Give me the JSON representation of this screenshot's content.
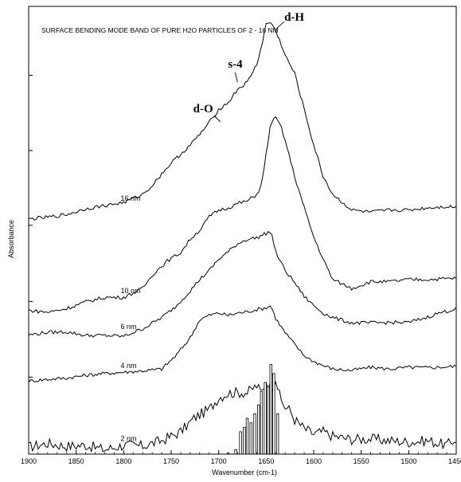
{
  "chart_data": {
    "type": "line",
    "title": "SURFACE BENDING MODE BAND OF PURE H2O PARTICLES OF 2 - 16 NM",
    "xlabel": "Wavenumber (cm-1)",
    "ylabel": "Absorbance",
    "xlim": [
      1900,
      1450
    ],
    "x_reversed": true,
    "ylim": [
      0,
      1
    ],
    "y_tick_labels_shown": false,
    "grid": false,
    "x_ticks": [
      1900,
      1850,
      1800,
      1750,
      1700,
      1650,
      1600,
      1550,
      1500,
      1450
    ],
    "x_tick_labels": [
      "1900",
      "1850",
      "1800",
      "1750",
      "1700",
      "1650",
      "1600",
      "1550",
      "1500",
      "1450"
    ],
    "y_ticks": [
      0.0,
      0.172,
      0.341,
      0.511,
      0.678,
      0.846
    ],
    "series": [
      {
        "name": "2 nm",
        "x": [
          1900,
          1880,
          1860,
          1840,
          1820,
          1800,
          1780,
          1760,
          1740,
          1725,
          1710,
          1700,
          1690,
          1680,
          1670,
          1660,
          1655,
          1650,
          1645,
          1640,
          1635,
          1630,
          1625,
          1620,
          1610,
          1600,
          1590,
          1580,
          1560,
          1540,
          1520,
          1500,
          1480,
          1460,
          1450
        ],
        "y": [
          0.016,
          0.024,
          0.018,
          0.02,
          0.01,
          0.02,
          0.018,
          0.03,
          0.05,
          0.082,
          0.1,
          0.126,
          0.136,
          0.138,
          0.137,
          0.153,
          0.136,
          0.164,
          0.147,
          0.17,
          0.122,
          0.105,
          0.098,
          0.077,
          0.057,
          0.045,
          0.05,
          0.04,
          0.033,
          0.034,
          0.03,
          0.027,
          0.03,
          0.02,
          0.034
        ]
      },
      {
        "name": "4 nm",
        "x": [
          1900,
          1880,
          1860,
          1840,
          1820,
          1800,
          1780,
          1760,
          1745,
          1730,
          1720,
          1710,
          1700,
          1690,
          1680,
          1670,
          1660,
          1650,
          1645,
          1640,
          1630,
          1620,
          1610,
          1600,
          1590,
          1580,
          1560,
          1540,
          1520,
          1500,
          1480,
          1460,
          1450
        ],
        "y": [
          0.163,
          0.167,
          0.17,
          0.176,
          0.18,
          0.183,
          0.186,
          0.19,
          0.22,
          0.26,
          0.3,
          0.31,
          0.315,
          0.31,
          0.315,
          0.318,
          0.323,
          0.327,
          0.332,
          0.303,
          0.271,
          0.245,
          0.22,
          0.207,
          0.198,
          0.19,
          0.187,
          0.194,
          0.19,
          0.194,
          0.193,
          0.195,
          0.196
        ]
      },
      {
        "name": "6 nm",
        "x": [
          1900,
          1880,
          1860,
          1840,
          1820,
          1800,
          1780,
          1760,
          1745,
          1730,
          1720,
          1710,
          1700,
          1690,
          1680,
          1670,
          1660,
          1650,
          1645,
          1640,
          1630,
          1620,
          1610,
          1600,
          1590,
          1580,
          1560,
          1540,
          1520,
          1500,
          1490,
          1480,
          1470,
          1460,
          1450
        ],
        "y": [
          0.266,
          0.272,
          0.273,
          0.265,
          0.265,
          0.263,
          0.28,
          0.305,
          0.33,
          0.365,
          0.39,
          0.41,
          0.435,
          0.452,
          0.47,
          0.48,
          0.483,
          0.493,
          0.498,
          0.451,
          0.41,
          0.383,
          0.352,
          0.332,
          0.315,
          0.305,
          0.293,
          0.293,
          0.294,
          0.294,
          0.3,
          0.306,
          0.314,
          0.319,
          0.325
        ]
      },
      {
        "name": "10 nm",
        "x": [
          1900,
          1880,
          1860,
          1840,
          1820,
          1800,
          1780,
          1770,
          1755,
          1740,
          1730,
          1720,
          1710,
          1700,
          1690,
          1680,
          1670,
          1660,
          1655,
          1650,
          1645,
          1640,
          1635,
          1630,
          1620,
          1610,
          1600,
          1590,
          1580,
          1560,
          1540,
          1520,
          1500,
          1480,
          1460,
          1450
        ],
        "y": [
          0.321,
          0.317,
          0.325,
          0.34,
          0.35,
          0.35,
          0.37,
          0.4,
          0.43,
          0.45,
          0.48,
          0.5,
          0.53,
          0.545,
          0.55,
          0.56,
          0.565,
          0.58,
          0.6,
          0.67,
          0.742,
          0.75,
          0.735,
          0.7,
          0.62,
          0.55,
          0.485,
          0.435,
          0.39,
          0.37,
          0.385,
          0.385,
          0.39,
          0.39,
          0.392,
          0.393
        ]
      },
      {
        "name": "16 nm",
        "x": [
          1900,
          1880,
          1860,
          1840,
          1820,
          1800,
          1780,
          1770,
          1760,
          1750,
          1740,
          1730,
          1720,
          1710,
          1700,
          1690,
          1680,
          1670,
          1660,
          1655,
          1650,
          1645,
          1640,
          1635,
          1630,
          1620,
          1610,
          1600,
          1590,
          1580,
          1560,
          1540,
          1520,
          1500,
          1480,
          1460,
          1450
        ],
        "y": [
          0.525,
          0.529,
          0.535,
          0.548,
          0.555,
          0.562,
          0.58,
          0.6,
          0.626,
          0.65,
          0.67,
          0.69,
          0.714,
          0.74,
          0.77,
          0.785,
          0.815,
          0.83,
          0.87,
          0.91,
          0.96,
          0.965,
          0.945,
          0.92,
          0.89,
          0.85,
          0.77,
          0.69,
          0.62,
          0.58,
          0.545,
          0.54,
          0.545,
          0.545,
          0.55,
          0.553,
          0.552
        ]
      }
    ],
    "stick_spectrum": {
      "x": [
        1690,
        1682,
        1677,
        1673,
        1670,
        1666,
        1662,
        1658,
        1655,
        1651,
        1648,
        1645,
        1642,
        1638
      ],
      "y": [
        0.002,
        0.01,
        0.05,
        0.06,
        0.08,
        0.07,
        0.09,
        0.11,
        0.14,
        0.16,
        0.15,
        0.2,
        0.18,
        0.09
      ]
    },
    "annotations": [
      {
        "text": "d-O",
        "x": 1700,
        "y": 0.76
      },
      {
        "text": "s-4",
        "x": 1681,
        "y": 0.82
      },
      {
        "text": "d-H",
        "x": 1641,
        "y": 0.975
      }
    ]
  }
}
